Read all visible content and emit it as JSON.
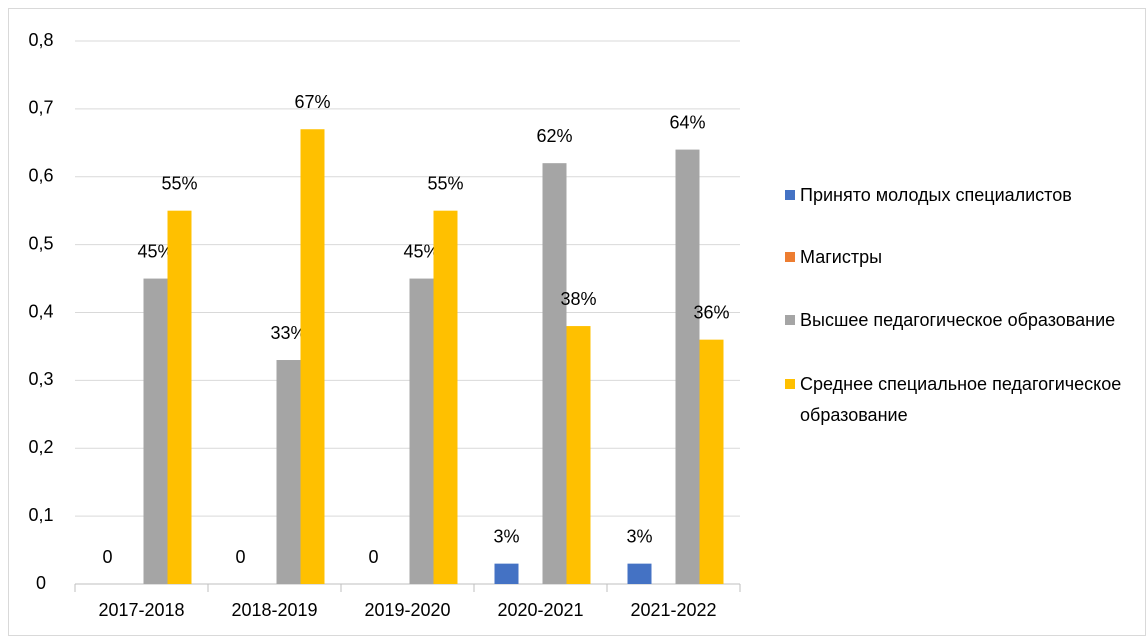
{
  "chart_data": {
    "type": "bar",
    "categories": [
      "2017-2018",
      "2018-2019",
      "2019-2020",
      "2020-2021",
      "2021-2022"
    ],
    "series": [
      {
        "name": "Принято молодых специалистов",
        "color": "#4472c4",
        "values": [
          0,
          0,
          0,
          0.03,
          0.03
        ],
        "value_labels": [
          "0",
          "0",
          "0",
          "3%",
          "3%"
        ]
      },
      {
        "name": "Магистры",
        "color": "#ed7d31",
        "values": [
          0,
          0,
          0,
          0,
          0
        ]
      },
      {
        "name": "Высшее педагогическое образование",
        "color": "#a5a5a5",
        "values": [
          0.45,
          0.33,
          0.45,
          0.62,
          0.64
        ],
        "value_labels": [
          "45%",
          "33%",
          "45%",
          "62%",
          "64%"
        ]
      },
      {
        "name": "Среднее специальное педагогическое образование",
        "color": "#ffc000",
        "values": [
          0.55,
          0.67,
          0.55,
          0.38,
          0.36
        ],
        "value_labels": [
          "55%",
          "67%",
          "55%",
          "38%",
          "36%"
        ]
      }
    ],
    "ylim": [
      0,
      0.8
    ],
    "yticks": [
      0,
      {
        "value": 0.1,
        "label": "0,1"
      },
      {
        "value": 0.2,
        "label": "0,2"
      },
      {
        "value": 0.3,
        "label": "0,3"
      },
      {
        "value": 0.4,
        "label": "0,4"
      },
      {
        "value": 0.5,
        "label": "0,5"
      },
      {
        "value": 0.6,
        "label": "0,6"
      },
      {
        "value": 0.7,
        "label": "0,7"
      },
      {
        "value": 0.8,
        "label": "0,8"
      }
    ],
    "grid": true,
    "legend": "right"
  }
}
